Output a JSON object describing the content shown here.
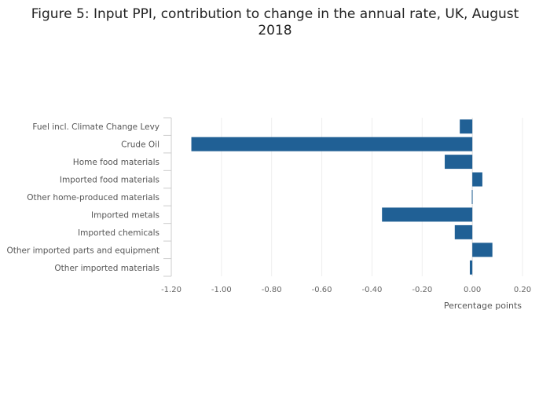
{
  "chart_data": {
    "type": "bar",
    "orientation": "horizontal",
    "title": "Figure 5: Input PPI, contribution to change in the annual rate, UK, August 2018",
    "categories": [
      "Fuel incl. Climate Change Levy",
      "Crude Oil",
      "Home food materials",
      "Imported food materials",
      "Other home-produced materials",
      "Imported metals",
      "Imported chemicals",
      "Other imported parts and equipment",
      "Other imported materials"
    ],
    "values": [
      -0.05,
      -1.12,
      -0.11,
      0.04,
      -0.002,
      -0.36,
      -0.07,
      0.08,
      -0.01
    ],
    "xlabel": "Percentage points",
    "ylabel": "",
    "xlim": [
      -1.2,
      0.2
    ],
    "xticks": [
      -1.2,
      -1.0,
      -0.8,
      -0.6,
      -0.4,
      -0.2,
      0.0,
      0.2
    ],
    "xtick_labels": [
      "-1.20",
      "-1.00",
      "-0.80",
      "-0.60",
      "-0.40",
      "-0.20",
      "0.00",
      "0.20"
    ],
    "grid": true,
    "bar_color": "#206095"
  }
}
